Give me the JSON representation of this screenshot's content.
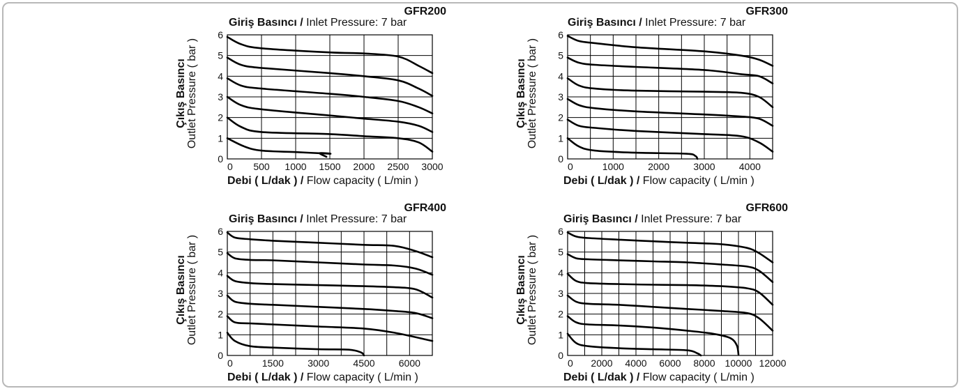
{
  "charts_meta": {
    "inlet_bold": "Giriş Basıncı /",
    "inlet_rest": " Inlet Pressure: 7 bar",
    "xlabel_bold": "Debi ( L/dak ) /",
    "xlabel_rest": " Flow capacity ( L/min )",
    "ylabel_bold": "Çıkış Basıncı",
    "ylabel_rest": "Outlet Pressure ( bar )"
  },
  "chart_data": [
    {
      "type": "line",
      "title": "GFR200",
      "subtitle": "Giriş Basıncı / Inlet Pressure: 7 bar",
      "xlabel": "Debi ( L/dak ) / Flow capacity ( L/min )",
      "ylabel": "Çıkış Basıncı Outlet Pressure ( bar )",
      "xlim": [
        0,
        3000
      ],
      "ylim": [
        0,
        6
      ],
      "xticks": [
        0,
        500,
        1000,
        1500,
        2000,
        2500,
        3000
      ],
      "yticks": [
        0,
        1,
        2,
        3,
        4,
        5,
        6
      ],
      "grid": true,
      "series": [
        {
          "x": [
            0,
            250,
            500,
            1000,
            1500,
            1350,
            1450
          ],
          "y": [
            1.0,
            0.6,
            0.4,
            0.33,
            0.25,
            0.28,
            0.1
          ]
        },
        {
          "x": [
            0,
            200,
            500,
            1500,
            2000,
            2500,
            2800,
            3000
          ],
          "y": [
            2.0,
            1.55,
            1.3,
            1.2,
            1.1,
            1.0,
            0.8,
            0.35
          ]
        },
        {
          "x": [
            0,
            200,
            500,
            1500,
            2000,
            2500,
            2800,
            3000
          ],
          "y": [
            3.0,
            2.6,
            2.4,
            2.1,
            1.95,
            1.8,
            1.6,
            1.3
          ]
        },
        {
          "x": [
            0,
            200,
            500,
            1500,
            2000,
            2500,
            2800,
            3000
          ],
          "y": [
            3.9,
            3.55,
            3.4,
            3.15,
            3.0,
            2.8,
            2.5,
            2.2
          ]
        },
        {
          "x": [
            0,
            200,
            500,
            1500,
            2000,
            2500,
            2800,
            3000
          ],
          "y": [
            4.9,
            4.55,
            4.4,
            4.15,
            4.0,
            3.8,
            3.4,
            3.05
          ]
        },
        {
          "x": [
            0,
            200,
            500,
            1500,
            2000,
            2500,
            2800,
            3000
          ],
          "y": [
            5.9,
            5.55,
            5.35,
            5.15,
            5.1,
            4.95,
            4.5,
            4.15
          ]
        }
      ]
    },
    {
      "type": "line",
      "title": "GFR300",
      "subtitle": "Giriş Basıncı / Inlet Pressure: 7 bar",
      "xlabel": "Debi ( L/dak ) / Flow capacity ( L/min )",
      "ylabel": "Çıkış Basıncı Outlet Pressure ( bar )",
      "xlim": [
        0,
        4500
      ],
      "ylim": [
        0,
        6
      ],
      "xticks": [
        0,
        1000,
        2000,
        3000,
        4000
      ],
      "xtick_step_grid": 500,
      "yticks": [
        0,
        1,
        2,
        3,
        4,
        5,
        6
      ],
      "grid": true,
      "series": [
        {
          "x": [
            0,
            250,
            600,
            1500,
            2600,
            2800,
            2850
          ],
          "y": [
            1.0,
            0.6,
            0.4,
            0.3,
            0.25,
            0.15,
            0.0
          ]
        },
        {
          "x": [
            0,
            250,
            600,
            1500,
            3000,
            3800,
            4200,
            4500
          ],
          "y": [
            1.9,
            1.6,
            1.5,
            1.35,
            1.2,
            1.1,
            0.8,
            0.35
          ]
        },
        {
          "x": [
            0,
            250,
            600,
            1500,
            3000,
            3800,
            4200,
            4500
          ],
          "y": [
            2.9,
            2.6,
            2.45,
            2.3,
            2.15,
            2.05,
            1.95,
            1.6
          ]
        },
        {
          "x": [
            0,
            250,
            600,
            1500,
            3000,
            3800,
            4200,
            4500
          ],
          "y": [
            3.9,
            3.55,
            3.4,
            3.3,
            3.25,
            3.2,
            3.0,
            2.5
          ]
        },
        {
          "x": [
            0,
            250,
            600,
            1500,
            3000,
            3800,
            4200,
            4500
          ],
          "y": [
            4.9,
            4.65,
            4.55,
            4.45,
            4.3,
            4.1,
            4.0,
            3.65
          ]
        },
        {
          "x": [
            0,
            250,
            600,
            1500,
            3000,
            3800,
            4200,
            4500
          ],
          "y": [
            5.95,
            5.7,
            5.6,
            5.4,
            5.2,
            5.0,
            4.8,
            4.5
          ]
        }
      ]
    },
    {
      "type": "line",
      "title": "GFR400",
      "subtitle": "Giriş Basıncı / Inlet Pressure: 7 bar",
      "xlabel": "Debi ( L/dak ) / Flow capacity ( L/min )",
      "ylabel": "Çıkış Basıncı Outlet Pressure ( bar )",
      "xlim": [
        0,
        6750
      ],
      "ylim": [
        0,
        6
      ],
      "xticks": [
        0,
        1500,
        3000,
        4500,
        6000
      ],
      "xtick_step_grid": 750,
      "yticks": [
        0,
        1,
        2,
        3,
        4,
        5,
        6
      ],
      "grid": true,
      "series": [
        {
          "x": [
            0,
            250,
            750,
            1500,
            3000,
            4000,
            4400,
            4500
          ],
          "y": [
            1.1,
            0.7,
            0.45,
            0.38,
            0.3,
            0.28,
            0.15,
            0.0
          ]
        },
        {
          "x": [
            0,
            250,
            750,
            1500,
            3000,
            4500,
            5500,
            6750
          ],
          "y": [
            1.9,
            1.6,
            1.55,
            1.5,
            1.4,
            1.3,
            1.1,
            0.7
          ]
        },
        {
          "x": [
            0,
            250,
            750,
            1500,
            3000,
            4500,
            5500,
            6200,
            6750
          ],
          "y": [
            2.9,
            2.6,
            2.5,
            2.45,
            2.35,
            2.25,
            2.15,
            2.05,
            1.8
          ]
        },
        {
          "x": [
            0,
            250,
            750,
            1500,
            3000,
            4500,
            5500,
            6200,
            6750
          ],
          "y": [
            3.85,
            3.6,
            3.5,
            3.45,
            3.4,
            3.35,
            3.3,
            3.2,
            2.8
          ]
        },
        {
          "x": [
            0,
            250,
            750,
            1500,
            3000,
            4500,
            5500,
            6200,
            6750
          ],
          "y": [
            4.95,
            4.7,
            4.62,
            4.6,
            4.5,
            4.4,
            4.35,
            4.2,
            3.9
          ]
        },
        {
          "x": [
            0,
            250,
            750,
            1500,
            3000,
            4500,
            5500,
            6200,
            6750
          ],
          "y": [
            5.95,
            5.7,
            5.62,
            5.55,
            5.45,
            5.35,
            5.3,
            5.05,
            4.75
          ]
        }
      ]
    },
    {
      "type": "line",
      "title": "GFR600",
      "subtitle": "Giriş Basıncı / Inlet Pressure: 7 bar",
      "xlabel": "Debi ( L/dak ) / Flow capacity ( L/min )",
      "ylabel": "Çıkış Basıncı Outlet Pressure ( bar )",
      "xlim": [
        0,
        12000
      ],
      "ylim": [
        0,
        6
      ],
      "xticks": [
        0,
        2000,
        4000,
        6000,
        8000,
        10000,
        12000
      ],
      "xtick_step_grid": 1000,
      "yticks": [
        0,
        1,
        2,
        3,
        4,
        5,
        6
      ],
      "grid": true,
      "series": [
        {
          "x": [
            0,
            500,
            1200,
            3000,
            5000,
            7000,
            7600,
            7800
          ],
          "y": [
            1.05,
            0.6,
            0.45,
            0.35,
            0.3,
            0.25,
            0.1,
            0.0
          ]
        },
        {
          "x": [
            0,
            500,
            1200,
            3000,
            5000,
            7000,
            8500,
            9500,
            9900,
            10000
          ],
          "y": [
            1.9,
            1.6,
            1.5,
            1.45,
            1.35,
            1.2,
            1.05,
            0.85,
            0.5,
            0.05
          ]
        },
        {
          "x": [
            0,
            500,
            1200,
            3000,
            5000,
            7000,
            9000,
            10500,
            11200,
            12000
          ],
          "y": [
            2.9,
            2.6,
            2.5,
            2.45,
            2.35,
            2.25,
            2.15,
            2.05,
            1.8,
            1.2
          ]
        },
        {
          "x": [
            0,
            500,
            1200,
            3000,
            5000,
            7000,
            9000,
            10500,
            11200,
            12000
          ],
          "y": [
            3.95,
            3.6,
            3.5,
            3.45,
            3.42,
            3.4,
            3.35,
            3.25,
            3.05,
            2.45
          ]
        },
        {
          "x": [
            0,
            500,
            1200,
            3000,
            5000,
            7000,
            9000,
            10500,
            11200,
            12000
          ],
          "y": [
            4.9,
            4.7,
            4.65,
            4.6,
            4.55,
            4.5,
            4.4,
            4.3,
            4.1,
            3.55
          ]
        },
        {
          "x": [
            0,
            500,
            1200,
            3000,
            5000,
            7000,
            9000,
            10500,
            11200,
            12000
          ],
          "y": [
            5.95,
            5.75,
            5.68,
            5.6,
            5.52,
            5.45,
            5.38,
            5.2,
            4.95,
            4.5
          ]
        }
      ]
    }
  ]
}
